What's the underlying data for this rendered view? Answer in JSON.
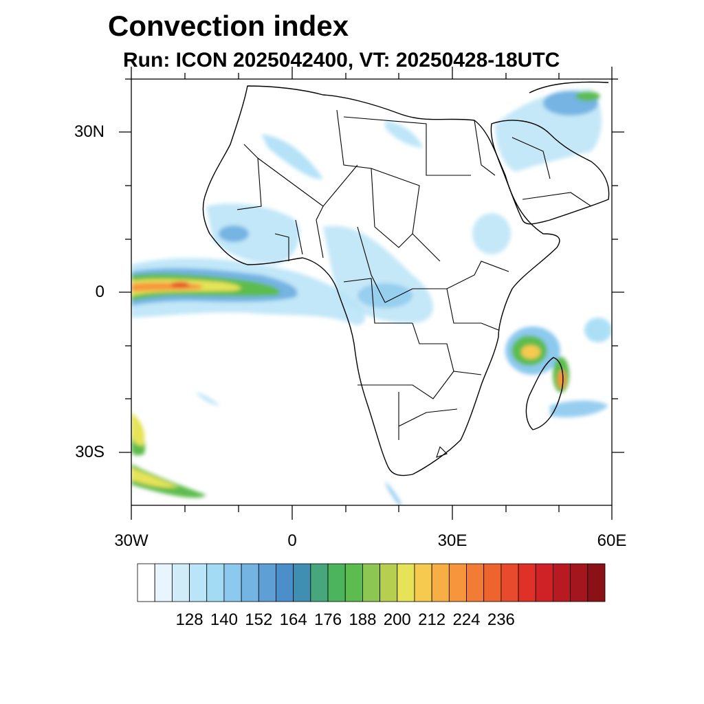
{
  "title": "Convection index",
  "subtitle": "Run: ICON 2025042400,  VT: 20250428-18UTC",
  "axes": {
    "lat_labels": [
      "30N",
      "0",
      "30S"
    ],
    "lon_labels": [
      "30W",
      "0",
      "30E",
      "60E"
    ]
  },
  "colorbar": {
    "labels": [
      "128",
      "140",
      "152",
      "164",
      "176",
      "188",
      "200",
      "212",
      "224",
      "236"
    ],
    "colors": [
      "#ffffff",
      "#e8f5fc",
      "#d0ecf9",
      "#bae4f7",
      "#a3dbf5",
      "#8cc9ee",
      "#74b4e3",
      "#5e9fd6",
      "#4a8fc9",
      "#3f8fb3",
      "#47a67b",
      "#4cb45c",
      "#5dbc4e",
      "#8ec653",
      "#b6cf4e",
      "#e6e358",
      "#f5ca4f",
      "#f7af45",
      "#f7953d",
      "#f27c35",
      "#ee642e",
      "#e74a2c",
      "#e03128",
      "#cf2227",
      "#b91a22",
      "#a3161e",
      "#8a1216"
    ]
  },
  "colors": {
    "land_outline": "#000000",
    "frame": "#000000"
  }
}
